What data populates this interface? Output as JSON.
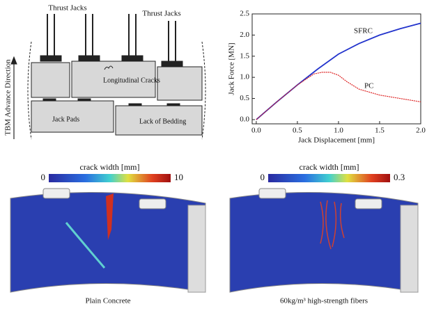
{
  "diagram": {
    "thrust_jacks_left": "Thrust Jacks",
    "thrust_jacks_right": "Thrust Jacks",
    "advance_direction": "TBM Advance Direction",
    "cracks": "Longitudinal Cracks",
    "jack_pads": "Jack Pads",
    "lack_of_bedding": "Lack of Bedding"
  },
  "chart_data": {
    "type": "line",
    "xlabel": "Jack Displacement [mm]",
    "ylabel": "Jack Force [MN]",
    "xlim": [
      -0.05,
      2.0
    ],
    "ylim": [
      -0.1,
      2.5
    ],
    "xticks": [
      {
        "value": 0,
        "label": "0.0"
      },
      0.5,
      {
        "value": 1,
        "label": "1.0"
      },
      1.5,
      {
        "value": 2,
        "label": "2.0"
      }
    ],
    "yticks": [
      {
        "value": 0,
        "label": "0.0"
      },
      0.5,
      {
        "value": 1,
        "label": "1.0"
      },
      1.5,
      {
        "value": 2,
        "label": "2.0"
      },
      2.5
    ],
    "series": [
      {
        "name": "SFRC",
        "color": "#2233cc",
        "x": [
          0,
          0.25,
          0.5,
          0.75,
          1.0,
          1.25,
          1.5,
          1.75,
          2.0
        ],
        "values": [
          0,
          0.42,
          0.82,
          1.2,
          1.55,
          1.8,
          2.0,
          2.15,
          2.28
        ]
      },
      {
        "name": "PC",
        "color": "#dd2222",
        "x": [
          0,
          0.25,
          0.5,
          0.7,
          0.8,
          0.9,
          1.0,
          1.1,
          1.25,
          1.5,
          1.75,
          2.0
        ],
        "values": [
          0,
          0.42,
          0.82,
          1.08,
          1.12,
          1.12,
          1.05,
          0.9,
          0.72,
          0.58,
          0.5,
          0.42
        ]
      }
    ]
  },
  "colorbars": [
    {
      "title": "crack width [mm]",
      "min": 0,
      "max": 10
    },
    {
      "title": "crack width [mm]",
      "min": 0,
      "max": 0.3
    }
  ],
  "captions": [
    "Plain Concrete",
    "60kg/m³ high-strength fibers"
  ]
}
